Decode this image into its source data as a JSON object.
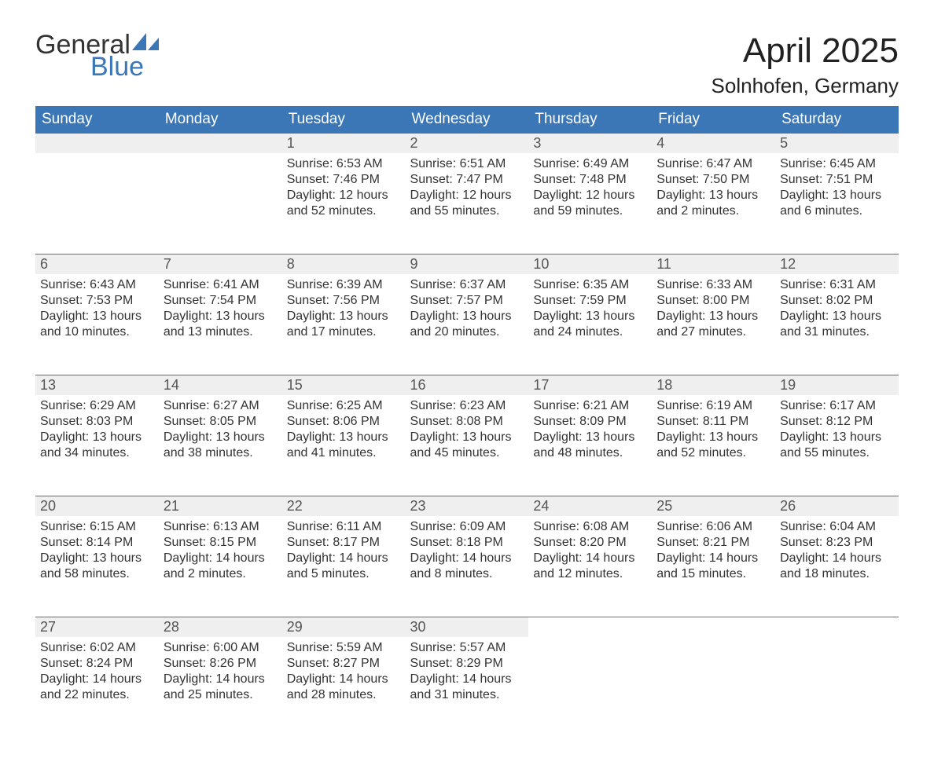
{
  "logo": {
    "general": "General",
    "blue": "Blue"
  },
  "title": "April 2025",
  "location": "Solnhofen, Germany",
  "colors": {
    "header_bg": "#3b77b7",
    "header_text": "#ffffff",
    "daynum_bg": "#efefef",
    "daynum_text": "#555555",
    "body_text": "#333333",
    "divider": "#3b77b7",
    "page_bg": "#ffffff",
    "logo_blue": "#3b77b7"
  },
  "weekdays": [
    "Sunday",
    "Monday",
    "Tuesday",
    "Wednesday",
    "Thursday",
    "Friday",
    "Saturday"
  ],
  "first_weekday_index": 2,
  "days": [
    {
      "n": "1",
      "sunrise": "Sunrise: 6:53 AM",
      "sunset": "Sunset: 7:46 PM",
      "daylight": "Daylight: 12 hours and 52 minutes."
    },
    {
      "n": "2",
      "sunrise": "Sunrise: 6:51 AM",
      "sunset": "Sunset: 7:47 PM",
      "daylight": "Daylight: 12 hours and 55 minutes."
    },
    {
      "n": "3",
      "sunrise": "Sunrise: 6:49 AM",
      "sunset": "Sunset: 7:48 PM",
      "daylight": "Daylight: 12 hours and 59 minutes."
    },
    {
      "n": "4",
      "sunrise": "Sunrise: 6:47 AM",
      "sunset": "Sunset: 7:50 PM",
      "daylight": "Daylight: 13 hours and 2 minutes."
    },
    {
      "n": "5",
      "sunrise": "Sunrise: 6:45 AM",
      "sunset": "Sunset: 7:51 PM",
      "daylight": "Daylight: 13 hours and 6 minutes."
    },
    {
      "n": "6",
      "sunrise": "Sunrise: 6:43 AM",
      "sunset": "Sunset: 7:53 PM",
      "daylight": "Daylight: 13 hours and 10 minutes."
    },
    {
      "n": "7",
      "sunrise": "Sunrise: 6:41 AM",
      "sunset": "Sunset: 7:54 PM",
      "daylight": "Daylight: 13 hours and 13 minutes."
    },
    {
      "n": "8",
      "sunrise": "Sunrise: 6:39 AM",
      "sunset": "Sunset: 7:56 PM",
      "daylight": "Daylight: 13 hours and 17 minutes."
    },
    {
      "n": "9",
      "sunrise": "Sunrise: 6:37 AM",
      "sunset": "Sunset: 7:57 PM",
      "daylight": "Daylight: 13 hours and 20 minutes."
    },
    {
      "n": "10",
      "sunrise": "Sunrise: 6:35 AM",
      "sunset": "Sunset: 7:59 PM",
      "daylight": "Daylight: 13 hours and 24 minutes."
    },
    {
      "n": "11",
      "sunrise": "Sunrise: 6:33 AM",
      "sunset": "Sunset: 8:00 PM",
      "daylight": "Daylight: 13 hours and 27 minutes."
    },
    {
      "n": "12",
      "sunrise": "Sunrise: 6:31 AM",
      "sunset": "Sunset: 8:02 PM",
      "daylight": "Daylight: 13 hours and 31 minutes."
    },
    {
      "n": "13",
      "sunrise": "Sunrise: 6:29 AM",
      "sunset": "Sunset: 8:03 PM",
      "daylight": "Daylight: 13 hours and 34 minutes."
    },
    {
      "n": "14",
      "sunrise": "Sunrise: 6:27 AM",
      "sunset": "Sunset: 8:05 PM",
      "daylight": "Daylight: 13 hours and 38 minutes."
    },
    {
      "n": "15",
      "sunrise": "Sunrise: 6:25 AM",
      "sunset": "Sunset: 8:06 PM",
      "daylight": "Daylight: 13 hours and 41 minutes."
    },
    {
      "n": "16",
      "sunrise": "Sunrise: 6:23 AM",
      "sunset": "Sunset: 8:08 PM",
      "daylight": "Daylight: 13 hours and 45 minutes."
    },
    {
      "n": "17",
      "sunrise": "Sunrise: 6:21 AM",
      "sunset": "Sunset: 8:09 PM",
      "daylight": "Daylight: 13 hours and 48 minutes."
    },
    {
      "n": "18",
      "sunrise": "Sunrise: 6:19 AM",
      "sunset": "Sunset: 8:11 PM",
      "daylight": "Daylight: 13 hours and 52 minutes."
    },
    {
      "n": "19",
      "sunrise": "Sunrise: 6:17 AM",
      "sunset": "Sunset: 8:12 PM",
      "daylight": "Daylight: 13 hours and 55 minutes."
    },
    {
      "n": "20",
      "sunrise": "Sunrise: 6:15 AM",
      "sunset": "Sunset: 8:14 PM",
      "daylight": "Daylight: 13 hours and 58 minutes."
    },
    {
      "n": "21",
      "sunrise": "Sunrise: 6:13 AM",
      "sunset": "Sunset: 8:15 PM",
      "daylight": "Daylight: 14 hours and 2 minutes."
    },
    {
      "n": "22",
      "sunrise": "Sunrise: 6:11 AM",
      "sunset": "Sunset: 8:17 PM",
      "daylight": "Daylight: 14 hours and 5 minutes."
    },
    {
      "n": "23",
      "sunrise": "Sunrise: 6:09 AM",
      "sunset": "Sunset: 8:18 PM",
      "daylight": "Daylight: 14 hours and 8 minutes."
    },
    {
      "n": "24",
      "sunrise": "Sunrise: 6:08 AM",
      "sunset": "Sunset: 8:20 PM",
      "daylight": "Daylight: 14 hours and 12 minutes."
    },
    {
      "n": "25",
      "sunrise": "Sunrise: 6:06 AM",
      "sunset": "Sunset: 8:21 PM",
      "daylight": "Daylight: 14 hours and 15 minutes."
    },
    {
      "n": "26",
      "sunrise": "Sunrise: 6:04 AM",
      "sunset": "Sunset: 8:23 PM",
      "daylight": "Daylight: 14 hours and 18 minutes."
    },
    {
      "n": "27",
      "sunrise": "Sunrise: 6:02 AM",
      "sunset": "Sunset: 8:24 PM",
      "daylight": "Daylight: 14 hours and 22 minutes."
    },
    {
      "n": "28",
      "sunrise": "Sunrise: 6:00 AM",
      "sunset": "Sunset: 8:26 PM",
      "daylight": "Daylight: 14 hours and 25 minutes."
    },
    {
      "n": "29",
      "sunrise": "Sunrise: 5:59 AM",
      "sunset": "Sunset: 8:27 PM",
      "daylight": "Daylight: 14 hours and 28 minutes."
    },
    {
      "n": "30",
      "sunrise": "Sunrise: 5:57 AM",
      "sunset": "Sunset: 8:29 PM",
      "daylight": "Daylight: 14 hours and 31 minutes."
    }
  ]
}
